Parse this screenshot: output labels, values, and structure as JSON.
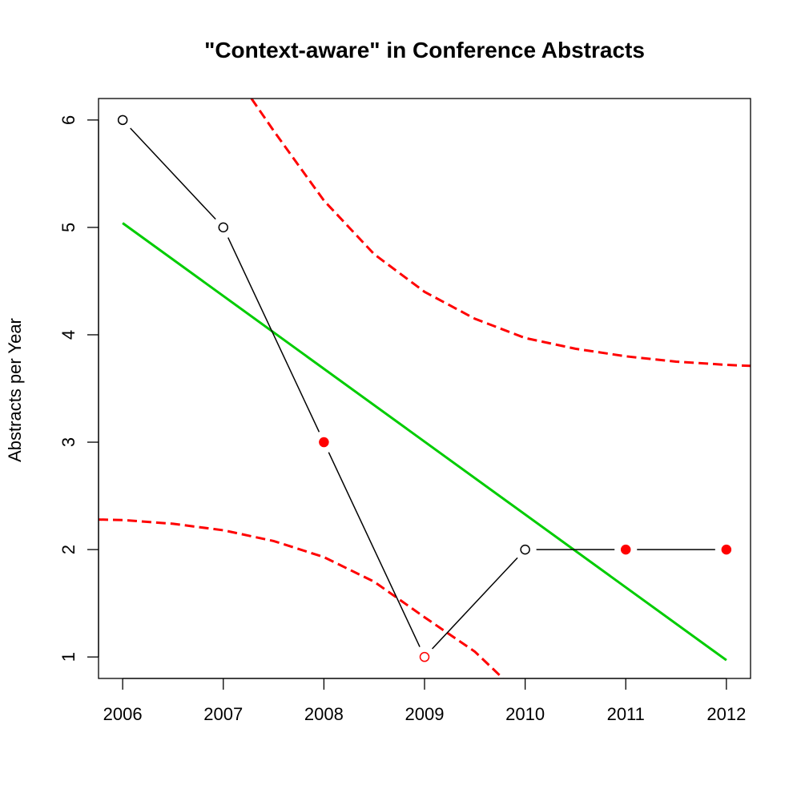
{
  "chart_data": {
    "type": "line",
    "title": "\"Context-aware\" in Conference Abstracts",
    "xlabel": "",
    "ylabel": "Abstracts per Year",
    "xlim": [
      2005.76,
      2012.24
    ],
    "ylim": [
      0.8,
      6.2
    ],
    "x_ticks": [
      "2006",
      "2007",
      "2008",
      "2009",
      "2010",
      "2011",
      "2012"
    ],
    "y_ticks": [
      "1",
      "2",
      "3",
      "4",
      "5",
      "6"
    ],
    "grid": false,
    "series": [
      {
        "kind": "observed",
        "color": "#000000",
        "points": [
          {
            "x": 2006,
            "y": 6,
            "marker": "open"
          },
          {
            "x": 2007,
            "y": 5,
            "marker": "open"
          },
          {
            "x": 2008,
            "y": 3,
            "marker": "filled-red"
          },
          {
            "x": 2009,
            "y": 1,
            "marker": "open-red"
          },
          {
            "x": 2010,
            "y": 2,
            "marker": "open"
          },
          {
            "x": 2011,
            "y": 2,
            "marker": "filled-red"
          },
          {
            "x": 2012,
            "y": 2,
            "marker": "filled-red"
          }
        ]
      },
      {
        "kind": "trend",
        "color": "#00cc00",
        "points": [
          {
            "x": 2006,
            "y": 5.04
          },
          {
            "x": 2012,
            "y": 0.97
          }
        ]
      },
      {
        "kind": "upper-band",
        "color": "#ff0000",
        "style": "dashed",
        "points": [
          {
            "x": 2007.28,
            "y": 6.2
          },
          {
            "x": 2007.5,
            "y": 5.9
          },
          {
            "x": 2008.0,
            "y": 5.25
          },
          {
            "x": 2008.5,
            "y": 4.75
          },
          {
            "x": 2009.0,
            "y": 4.4
          },
          {
            "x": 2009.5,
            "y": 4.15
          },
          {
            "x": 2010.0,
            "y": 3.97
          },
          {
            "x": 2010.5,
            "y": 3.87
          },
          {
            "x": 2011.0,
            "y": 3.8
          },
          {
            "x": 2011.5,
            "y": 3.75
          },
          {
            "x": 2012.0,
            "y": 3.72
          },
          {
            "x": 2012.24,
            "y": 3.71
          }
        ]
      },
      {
        "kind": "lower-band",
        "color": "#ff0000",
        "style": "dashed",
        "points": [
          {
            "x": 2005.76,
            "y": 2.28
          },
          {
            "x": 2006.0,
            "y": 2.275
          },
          {
            "x": 2006.5,
            "y": 2.24
          },
          {
            "x": 2007.0,
            "y": 2.18
          },
          {
            "x": 2007.5,
            "y": 2.08
          },
          {
            "x": 2008.0,
            "y": 1.93
          },
          {
            "x": 2008.5,
            "y": 1.7
          },
          {
            "x": 2009.0,
            "y": 1.37
          },
          {
            "x": 2009.5,
            "y": 1.05
          },
          {
            "x": 2009.78,
            "y": 0.8
          }
        ]
      }
    ]
  }
}
